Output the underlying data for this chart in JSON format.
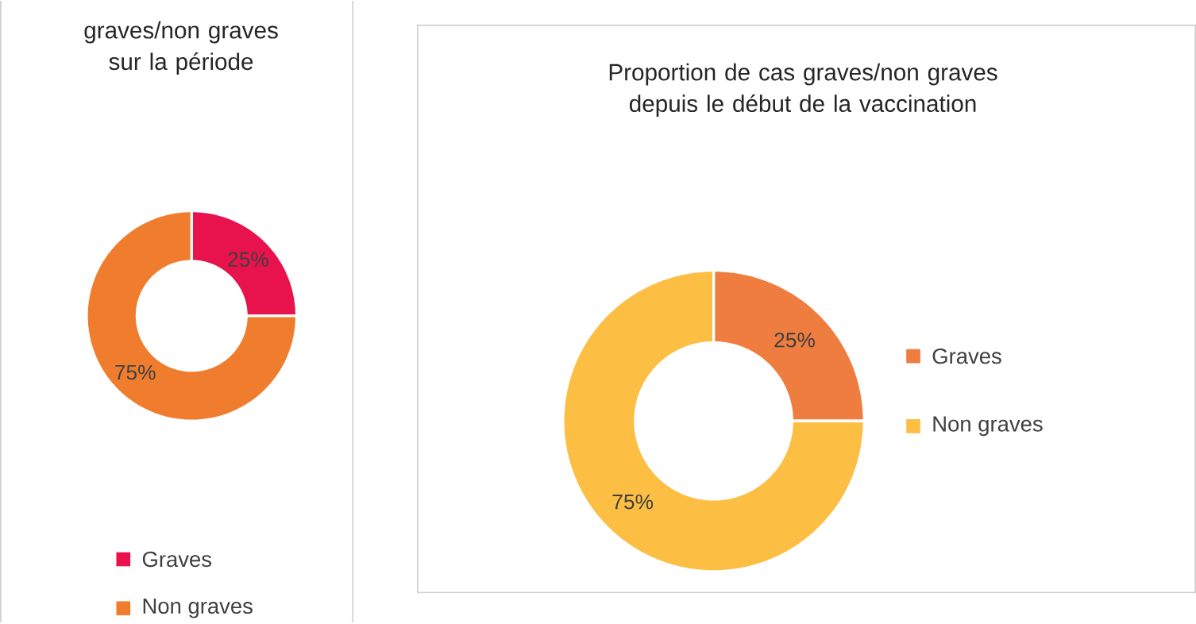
{
  "chart_data": [
    {
      "type": "donut",
      "title": "graves/non graves sur la période",
      "categories": [
        "Graves",
        "Non graves"
      ],
      "values": [
        25,
        75
      ],
      "colors": [
        "#e8124d",
        "#f07d2e"
      ],
      "value_labels": [
        "25%",
        "75%"
      ],
      "legend": "bottom"
    },
    {
      "type": "donut",
      "title": "Proportion de cas graves/non graves depuis le début de la vaccination",
      "categories": [
        "Graves",
        "Non graves"
      ],
      "values": [
        25,
        75
      ],
      "colors": [
        "#ef7d3f",
        "#fdbe44"
      ],
      "value_labels": [
        "25%",
        "75%"
      ],
      "legend": "right"
    }
  ]
}
